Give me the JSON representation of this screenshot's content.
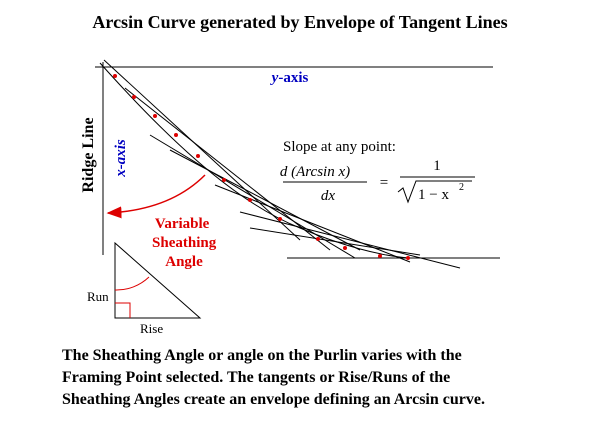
{
  "title": "Arcsin Curve generated by Envelope of Tangent Lines",
  "axes": {
    "y_var": "y",
    "y_rest": "-axis",
    "x_axis": "x-axis",
    "ridge": "Ridge Line"
  },
  "formula": {
    "intro": "Slope at any point:",
    "numerator": "d (Arcsin x)",
    "denominator": "dx",
    "equals": "=",
    "rhs_numerator": "1",
    "rhs_radicand": "1 − x",
    "exponent": "2"
  },
  "angle_label": [
    "Variable",
    "Sheathing",
    "Angle"
  ],
  "triangle": {
    "run": "Run",
    "rise": "Rise"
  },
  "caption": [
    "The Sheathing Angle or angle on the Purlin varies with the",
    "Framing Point selected. The tangents or Rise/Runs of the",
    "Sheathing Angles create an envelope defining an Arcsin curve."
  ]
}
